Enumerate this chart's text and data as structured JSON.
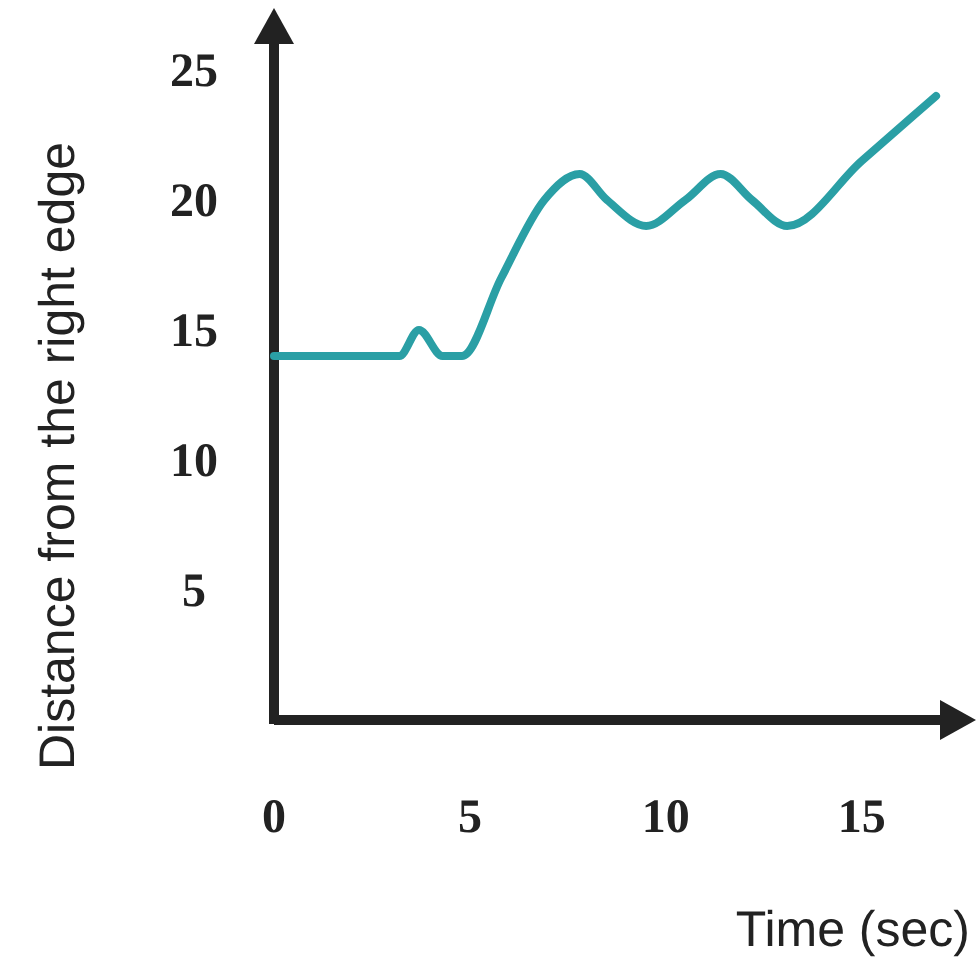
{
  "chart_data": {
    "type": "line",
    "xlabel": "Time (sec)",
    "ylabel": "Distance from the right edge",
    "xlim": [
      0,
      17
    ],
    "ylim": [
      0,
      26
    ],
    "xticks": [
      0,
      5,
      10,
      15
    ],
    "yticks": [
      5,
      10,
      15,
      20,
      25
    ],
    "series": [
      {
        "color": "#2a9fa5",
        "x": [
          0,
          3.2,
          3.7,
          4.3,
          4.8,
          5.8,
          6.9,
          7.8,
          8.5,
          9.5,
          10.5,
          11.4,
          12.2,
          13.1,
          15,
          16.9
        ],
        "values": [
          14,
          14,
          15,
          14,
          14,
          17,
          20,
          21,
          20,
          19,
          20,
          21,
          20,
          19,
          21.5,
          24
        ]
      }
    ],
    "grid": false,
    "marker": "none",
    "line_style": "solid"
  }
}
